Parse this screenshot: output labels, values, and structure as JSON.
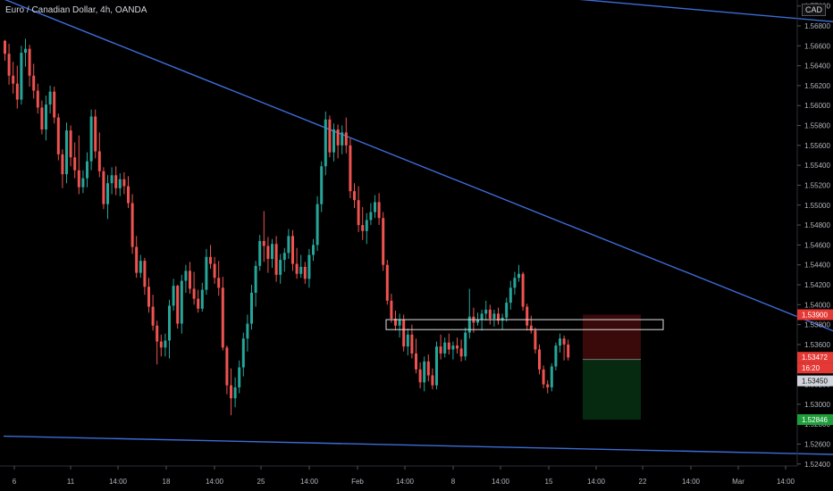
{
  "header": {
    "title": "Euro / Canadian Dollar, 4h, OANDA",
    "currency_button": "CAD"
  },
  "colors": {
    "background": "#000000",
    "up": "#26a69a",
    "down": "#ef5350",
    "trendline": "#3d6cd6",
    "axis_text": "#b2b5be",
    "risk_zone": "#3a0a0a",
    "reward_zone": "#062a10",
    "badge_red": "#e53935",
    "badge_green": "#1e9e3a",
    "badge_gray": "#d1d4dc"
  },
  "price_axis": {
    "ticks": [
      "1.57000",
      "1.56800",
      "1.56600",
      "1.56400",
      "1.56200",
      "1.56000",
      "1.55800",
      "1.55600",
      "1.55400",
      "1.55200",
      "1.55000",
      "1.54800",
      "1.54600",
      "1.54400",
      "1.54200",
      "1.54000",
      "1.53800",
      "1.53600",
      "1.53400",
      "1.53200",
      "1.53000",
      "1.52800",
      "1.52600",
      "1.52400"
    ],
    "badges": [
      {
        "label": "1.53900",
        "color": "red"
      },
      {
        "label": "1.53472",
        "color": "red"
      },
      {
        "label": "16:20",
        "color": "red"
      },
      {
        "label": "1.53450",
        "color": "gray"
      },
      {
        "label": "1.52846",
        "color": "green"
      }
    ]
  },
  "time_axis": {
    "labels": [
      "6",
      "11",
      "14:00",
      "18",
      "14:00",
      "25",
      "14:00",
      "Feb",
      "14:00",
      "8",
      "14:00",
      "15",
      "14:00",
      "22",
      "14:00",
      "Mar",
      "14:00"
    ]
  },
  "chart_data": {
    "type": "candlestick",
    "symbol": "Euro / Canadian Dollar",
    "timeframe": "4h",
    "ylim": [
      1.5238,
      1.5706
    ],
    "last_price": 1.53472,
    "position": {
      "entry": 1.5345,
      "stop": 1.539,
      "target": 1.52846
    },
    "zone": {
      "low": 1.5375,
      "high": 1.5385
    },
    "trendlines": [
      {
        "from": [
          0,
          1.5707
        ],
        "to": [
          230,
          1.5327
        ]
      },
      {
        "from": [
          139,
          1.5707
        ],
        "to": [
          230,
          1.5674
        ]
      },
      {
        "from": [
          0,
          1.5268
        ],
        "to": [
          220,
          1.5248
        ]
      }
    ],
    "candles": [
      [
        1.5665,
        1.5666,
        1.5645,
        1.5652
      ],
      [
        1.5652,
        1.5662,
        1.5621,
        1.563
      ],
      [
        1.563,
        1.5644,
        1.5612,
        1.5622
      ],
      [
        1.5622,
        1.564,
        1.5597,
        1.5606
      ],
      [
        1.5606,
        1.566,
        1.5601,
        1.5653
      ],
      [
        1.5653,
        1.5667,
        1.5639,
        1.5657
      ],
      [
        1.5657,
        1.5661,
        1.5619,
        1.563
      ],
      [
        1.563,
        1.5642,
        1.5607,
        1.5615
      ],
      [
        1.5615,
        1.5622,
        1.5592,
        1.5598
      ],
      [
        1.5598,
        1.5605,
        1.5571,
        1.5576
      ],
      [
        1.5576,
        1.561,
        1.5565,
        1.5601
      ],
      [
        1.5601,
        1.562,
        1.5592,
        1.5614
      ],
      [
        1.5614,
        1.5619,
        1.5582,
        1.5588
      ],
      [
        1.5588,
        1.5592,
        1.5545,
        1.5551
      ],
      [
        1.5551,
        1.5556,
        1.5517,
        1.5531
      ],
      [
        1.5531,
        1.5583,
        1.5522,
        1.5575
      ],
      [
        1.5575,
        1.558,
        1.5539,
        1.5548
      ],
      [
        1.5548,
        1.5563,
        1.5527,
        1.5535
      ],
      [
        1.5535,
        1.557,
        1.5511,
        1.5518
      ],
      [
        1.5518,
        1.5535,
        1.5512,
        1.5527
      ],
      [
        1.5527,
        1.5553,
        1.5518,
        1.5544
      ],
      [
        1.5544,
        1.5596,
        1.5535,
        1.5589
      ],
      [
        1.5589,
        1.5596,
        1.5547,
        1.5554
      ],
      [
        1.5554,
        1.5573,
        1.5528,
        1.5534
      ],
      [
        1.5534,
        1.5538,
        1.5496,
        1.5501
      ],
      [
        1.5501,
        1.553,
        1.5486,
        1.5522
      ],
      [
        1.5522,
        1.5538,
        1.5511,
        1.553
      ],
      [
        1.553,
        1.5539,
        1.551,
        1.5517
      ],
      [
        1.5517,
        1.5532,
        1.5509,
        1.5526
      ],
      [
        1.5526,
        1.5533,
        1.5511,
        1.5519
      ],
      [
        1.5519,
        1.5529,
        1.5497,
        1.5502
      ],
      [
        1.5502,
        1.5511,
        1.5451,
        1.5458
      ],
      [
        1.5458,
        1.5469,
        1.5427,
        1.5432
      ],
      [
        1.5432,
        1.545,
        1.5427,
        1.5444
      ],
      [
        1.5444,
        1.5447,
        1.541,
        1.5418
      ],
      [
        1.5418,
        1.5427,
        1.5392,
        1.5398
      ],
      [
        1.5398,
        1.541,
        1.5374,
        1.5379
      ],
      [
        1.5379,
        1.5384,
        1.534,
        1.5363
      ],
      [
        1.5363,
        1.537,
        1.5348,
        1.5357
      ],
      [
        1.5357,
        1.5371,
        1.5348,
        1.5364
      ],
      [
        1.5364,
        1.5405,
        1.5346,
        1.5399
      ],
      [
        1.5399,
        1.5426,
        1.5394,
        1.5419
      ],
      [
        1.5419,
        1.542,
        1.5376,
        1.5381
      ],
      [
        1.5381,
        1.543,
        1.5371,
        1.5424
      ],
      [
        1.5424,
        1.544,
        1.5412,
        1.5434
      ],
      [
        1.5434,
        1.5443,
        1.5411,
        1.5416
      ],
      [
        1.5416,
        1.5433,
        1.54,
        1.5406
      ],
      [
        1.5406,
        1.5415,
        1.5392,
        1.5396
      ],
      [
        1.5396,
        1.5422,
        1.5393,
        1.5415
      ],
      [
        1.5415,
        1.5456,
        1.541,
        1.5448
      ],
      [
        1.5448,
        1.546,
        1.5436,
        1.5441
      ],
      [
        1.5441,
        1.5448,
        1.5421,
        1.5427
      ],
      [
        1.5427,
        1.5444,
        1.5409,
        1.5417
      ],
      [
        1.5417,
        1.5428,
        1.5354,
        1.5357
      ],
      [
        1.5357,
        1.5359,
        1.531,
        1.5319
      ],
      [
        1.5319,
        1.5336,
        1.5289,
        1.5306
      ],
      [
        1.5306,
        1.5327,
        1.5297,
        1.5317
      ],
      [
        1.5317,
        1.5344,
        1.5311,
        1.5337
      ],
      [
        1.5337,
        1.5372,
        1.5328,
        1.5366
      ],
      [
        1.5366,
        1.539,
        1.5353,
        1.5381
      ],
      [
        1.5381,
        1.542,
        1.5375,
        1.5412
      ],
      [
        1.5412,
        1.5444,
        1.5398,
        1.5439
      ],
      [
        1.5439,
        1.547,
        1.5434,
        1.5464
      ],
      [
        1.5464,
        1.5494,
        1.5443,
        1.5459
      ],
      [
        1.5459,
        1.5468,
        1.5432,
        1.5446
      ],
      [
        1.5446,
        1.5466,
        1.5437,
        1.5461
      ],
      [
        1.5461,
        1.5469,
        1.5423,
        1.543
      ],
      [
        1.543,
        1.5451,
        1.5421,
        1.5445
      ],
      [
        1.5445,
        1.5457,
        1.5433,
        1.5452
      ],
      [
        1.5452,
        1.5476,
        1.5446,
        1.5469
      ],
      [
        1.5469,
        1.5475,
        1.5434,
        1.5441
      ],
      [
        1.5441,
        1.5457,
        1.5426,
        1.5431
      ],
      [
        1.5431,
        1.545,
        1.5427,
        1.5438
      ],
      [
        1.5438,
        1.5443,
        1.5421,
        1.5426
      ],
      [
        1.5426,
        1.5456,
        1.5417,
        1.545
      ],
      [
        1.545,
        1.5466,
        1.5444,
        1.546
      ],
      [
        1.546,
        1.5509,
        1.5454,
        1.5501
      ],
      [
        1.5501,
        1.5544,
        1.5493,
        1.5539
      ],
      [
        1.5539,
        1.5594,
        1.553,
        1.5586
      ],
      [
        1.5586,
        1.559,
        1.5548,
        1.5553
      ],
      [
        1.5553,
        1.5582,
        1.5544,
        1.5576
      ],
      [
        1.5576,
        1.5581,
        1.5547,
        1.556
      ],
      [
        1.556,
        1.558,
        1.5551,
        1.5573
      ],
      [
        1.5573,
        1.5588,
        1.5552,
        1.556
      ],
      [
        1.556,
        1.5567,
        1.5507,
        1.5514
      ],
      [
        1.5514,
        1.5522,
        1.5497,
        1.5505
      ],
      [
        1.5505,
        1.5519,
        1.5473,
        1.548
      ],
      [
        1.548,
        1.5498,
        1.5465,
        1.5474
      ],
      [
        1.5474,
        1.5492,
        1.5461,
        1.5485
      ],
      [
        1.5485,
        1.5502,
        1.548,
        1.5493
      ],
      [
        1.5493,
        1.551,
        1.5487,
        1.5503
      ],
      [
        1.5503,
        1.5512,
        1.548,
        1.5487
      ],
      [
        1.5487,
        1.5493,
        1.5434,
        1.544
      ],
      [
        1.544,
        1.5445,
        1.54,
        1.5404
      ],
      [
        1.5404,
        1.5411,
        1.5382,
        1.5386
      ],
      [
        1.5386,
        1.5394,
        1.5374,
        1.5379
      ],
      [
        1.5379,
        1.5391,
        1.5367,
        1.5385
      ],
      [
        1.5385,
        1.539,
        1.5353,
        1.5358
      ],
      [
        1.5358,
        1.5376,
        1.5349,
        1.537
      ],
      [
        1.537,
        1.538,
        1.5346,
        1.5351
      ],
      [
        1.5351,
        1.5366,
        1.5331,
        1.5335
      ],
      [
        1.5335,
        1.5342,
        1.5316,
        1.5322
      ],
      [
        1.5322,
        1.5348,
        1.5313,
        1.5343
      ],
      [
        1.5343,
        1.535,
        1.5323,
        1.5329
      ],
      [
        1.5329,
        1.5336,
        1.5315,
        1.5319
      ],
      [
        1.5319,
        1.5363,
        1.5315,
        1.5358
      ],
      [
        1.5358,
        1.537,
        1.5345,
        1.5351
      ],
      [
        1.5351,
        1.5367,
        1.5347,
        1.5362
      ],
      [
        1.5362,
        1.5371,
        1.535,
        1.5355
      ],
      [
        1.5355,
        1.5363,
        1.5345,
        1.5359
      ],
      [
        1.5359,
        1.5367,
        1.5351,
        1.5356
      ],
      [
        1.5356,
        1.5365,
        1.5343,
        1.5348
      ],
      [
        1.5348,
        1.5377,
        1.5344,
        1.5372
      ],
      [
        1.5372,
        1.5416,
        1.5366,
        1.5388
      ],
      [
        1.5388,
        1.5397,
        1.5372,
        1.5382
      ],
      [
        1.5382,
        1.5392,
        1.5379,
        1.5385
      ],
      [
        1.5385,
        1.5395,
        1.5374,
        1.5391
      ],
      [
        1.5391,
        1.5404,
        1.5384,
        1.5395
      ],
      [
        1.5395,
        1.54,
        1.538,
        1.5386
      ],
      [
        1.5386,
        1.5395,
        1.5378,
        1.5391
      ],
      [
        1.5391,
        1.5397,
        1.538,
        1.5384
      ],
      [
        1.5384,
        1.5391,
        1.5375,
        1.5387
      ],
      [
        1.5387,
        1.5407,
        1.5383,
        1.5402
      ],
      [
        1.5402,
        1.5424,
        1.5395,
        1.5417
      ],
      [
        1.5417,
        1.5433,
        1.541,
        1.5427
      ],
      [
        1.5427,
        1.544,
        1.5423,
        1.5431
      ],
      [
        1.5431,
        1.5433,
        1.5394,
        1.5398
      ],
      [
        1.5398,
        1.5401,
        1.5374,
        1.5379
      ],
      [
        1.5379,
        1.5389,
        1.5371,
        1.5374
      ],
      [
        1.5374,
        1.5377,
        1.5351,
        1.5355
      ],
      [
        1.5355,
        1.536,
        1.533,
        1.5335
      ],
      [
        1.5335,
        1.5339,
        1.5316,
        1.532
      ],
      [
        1.532,
        1.5324,
        1.5311,
        1.5317
      ],
      [
        1.5317,
        1.5341,
        1.5313,
        1.5338
      ],
      [
        1.5338,
        1.5362,
        1.5334,
        1.5359
      ],
      [
        1.5359,
        1.5371,
        1.5352,
        1.5366
      ],
      [
        1.5366,
        1.5369,
        1.5344,
        1.536
      ],
      [
        1.536,
        1.5365,
        1.5344,
        1.5347
      ]
    ]
  }
}
